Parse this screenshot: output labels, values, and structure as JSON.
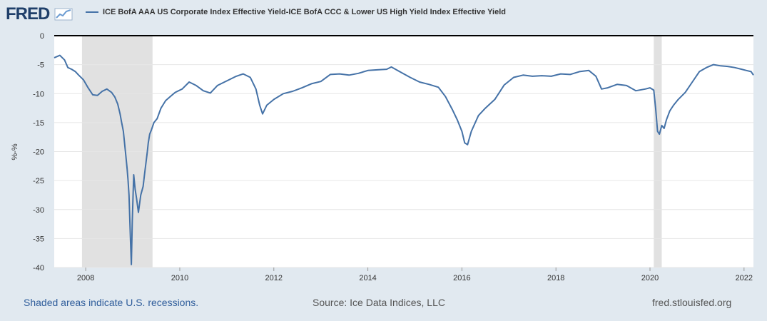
{
  "logo": {
    "text": "FRED",
    "icon": "line-chart-icon"
  },
  "legend": {
    "label": "ICE BofA AAA US Corporate Index Effective Yield-ICE BofA CCC & Lower US High Yield Index Effective Yield"
  },
  "footer": {
    "recession_note": "Shaded areas indicate U.S. recessions.",
    "source": "Source: Ice Data Indices, LLC",
    "site": "fred.stlouisfed.org"
  },
  "colors": {
    "background": "#e1e9f0",
    "plot_bg": "#ffffff",
    "line": "#4572a7",
    "recession": "#e1e1e1",
    "zero_line": "#000000"
  },
  "chart_data": {
    "type": "line",
    "title": "",
    "xlabel": "",
    "ylabel": "%-%",
    "xlim": [
      2007.33,
      2022.2
    ],
    "ylim": [
      -40,
      0
    ],
    "x_ticks": [
      2008,
      2010,
      2012,
      2014,
      2016,
      2018,
      2020,
      2022
    ],
    "y_ticks": [
      0,
      -5,
      -10,
      -15,
      -20,
      -25,
      -30,
      -35,
      -40
    ],
    "grid": "horizontal",
    "recessions": [
      [
        2007.92,
        2009.42
      ],
      [
        2020.08,
        2020.25
      ]
    ],
    "series": [
      {
        "name": "ICE BofA AAA US Corporate Index Effective Yield-ICE BofA CCC & Lower US High Yield Index Effective Yield",
        "x": [
          2007.33,
          2007.45,
          2007.55,
          2007.62,
          2007.7,
          2007.78,
          2007.85,
          2007.95,
          2008.05,
          2008.15,
          2008.25,
          2008.35,
          2008.45,
          2008.55,
          2008.62,
          2008.68,
          2008.73,
          2008.76,
          2008.8,
          2008.85,
          2008.88,
          2008.9,
          2008.92,
          2008.95,
          2008.97,
          2008.99,
          2009.02,
          2009.05,
          2009.08,
          2009.12,
          2009.17,
          2009.22,
          2009.25,
          2009.28,
          2009.31,
          2009.33,
          2009.36,
          2009.4,
          2009.45,
          2009.52,
          2009.6,
          2009.7,
          2009.8,
          2009.9,
          2010.05,
          2010.2,
          2010.35,
          2010.5,
          2010.65,
          2010.8,
          2011.0,
          2011.2,
          2011.35,
          2011.5,
          2011.62,
          2011.7,
          2011.76,
          2011.85,
          2012.0,
          2012.2,
          2012.4,
          2012.6,
          2012.8,
          2013.0,
          2013.2,
          2013.4,
          2013.6,
          2013.8,
          2014.0,
          2014.2,
          2014.4,
          2014.5,
          2014.7,
          2014.9,
          2015.1,
          2015.3,
          2015.5,
          2015.65,
          2015.8,
          2015.9,
          2016.0,
          2016.06,
          2016.12,
          2016.2,
          2016.35,
          2016.5,
          2016.7,
          2016.9,
          2017.1,
          2017.3,
          2017.5,
          2017.7,
          2017.9,
          2018.1,
          2018.3,
          2018.5,
          2018.7,
          2018.85,
          2018.97,
          2019.1,
          2019.3,
          2019.5,
          2019.7,
          2019.9,
          2020.0,
          2020.08,
          2020.12,
          2020.16,
          2020.2,
          2020.25,
          2020.3,
          2020.35,
          2020.42,
          2020.5,
          2020.6,
          2020.75,
          2020.9,
          2021.05,
          2021.2,
          2021.35,
          2021.5,
          2021.65,
          2021.8,
          2021.95,
          2022.05,
          2022.15,
          2022.2
        ],
        "values": [
          -3.8,
          -3.4,
          -4.2,
          -5.5,
          -5.8,
          -6.2,
          -6.8,
          -7.6,
          -9.0,
          -10.2,
          -10.3,
          -9.6,
          -9.2,
          -9.8,
          -10.6,
          -11.8,
          -13.5,
          -14.8,
          -16.5,
          -20.5,
          -23.0,
          -25.0,
          -27.5,
          -35.0,
          -39.5,
          -32.0,
          -24.0,
          -26.5,
          -28.0,
          -30.5,
          -27.5,
          -26.0,
          -24.0,
          -22.0,
          -20.0,
          -18.5,
          -17.0,
          -16.2,
          -15.0,
          -14.3,
          -12.5,
          -11.2,
          -10.5,
          -9.8,
          -9.2,
          -8.0,
          -8.6,
          -9.5,
          -9.9,
          -8.6,
          -7.8,
          -7.0,
          -6.6,
          -7.2,
          -9.2,
          -12.0,
          -13.5,
          -12.0,
          -11.0,
          -10.0,
          -9.6,
          -9.0,
          -8.3,
          -7.9,
          -6.7,
          -6.6,
          -6.8,
          -6.5,
          -6.0,
          -5.9,
          -5.8,
          -5.4,
          -6.3,
          -7.2,
          -8.0,
          -8.4,
          -8.9,
          -10.5,
          -12.8,
          -14.5,
          -16.5,
          -18.5,
          -18.8,
          -16.5,
          -13.8,
          -12.5,
          -11.0,
          -8.5,
          -7.2,
          -6.8,
          -7.0,
          -6.9,
          -7.0,
          -6.6,
          -6.7,
          -6.2,
          -6.0,
          -7.0,
          -9.2,
          -9.0,
          -8.4,
          -8.6,
          -9.5,
          -9.2,
          -9.0,
          -9.4,
          -12.5,
          -16.5,
          -17.0,
          -15.5,
          -16.0,
          -14.5,
          -13.0,
          -12.0,
          -11.0,
          -9.8,
          -8.0,
          -6.2,
          -5.5,
          -5.0,
          -5.2,
          -5.3,
          -5.5,
          -5.8,
          -6.0,
          -6.2,
          -6.8
        ]
      }
    ]
  }
}
